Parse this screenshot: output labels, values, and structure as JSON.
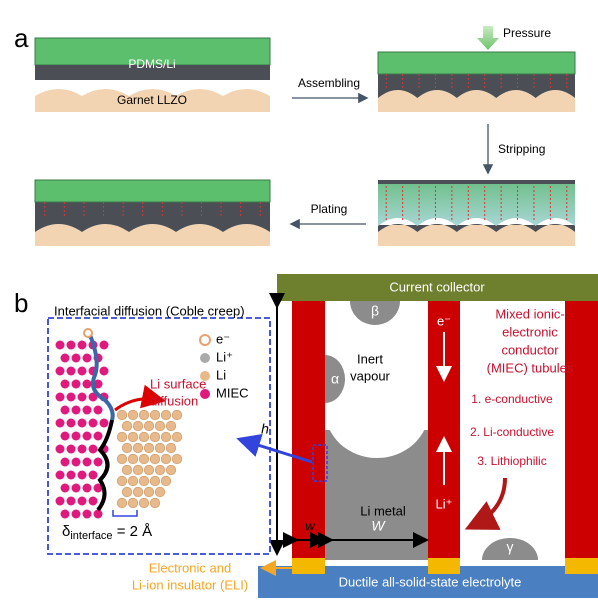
{
  "panel_a": {
    "label": "a",
    "layer_top": "PDMS/Li",
    "layer_bottom": "Garnet LLZO",
    "pressure": "Pressure",
    "assembling": "Assembling",
    "stripping": "Stripping",
    "plating": "Plating"
  },
  "panel_b": {
    "label": "b",
    "current_collector": "Current collector",
    "electrolyte": "Ductile all-solid-state electrolyte",
    "inset_title": "Interfacial diffusion (Coble creep)",
    "legend": [
      "e⁻",
      "Li⁺",
      "Li",
      "MIEC"
    ],
    "surface_diffusion": [
      "Li surface",
      "diffusion"
    ],
    "delta_symbol": "δ",
    "delta_subscript": "interface",
    "delta_value": " = 2 Å",
    "pores": [
      "β",
      "α",
      "γ"
    ],
    "inert_vapour": [
      "Inert",
      "vapour"
    ],
    "li_metal": "Li metal",
    "electron": "e⁻",
    "li_ion": "Li⁺",
    "h": "h",
    "w": "w",
    "W": "W",
    "tubules_title": [
      "Mixed ionic-",
      "electronic",
      "conductor",
      "(MIEC) tubules"
    ],
    "properties": [
      "1. e-conductive",
      "2. Li-conductive",
      "3. Lithiophilic"
    ],
    "eli": [
      "Electronic and",
      "Li-ion insulator (ELI)"
    ]
  }
}
